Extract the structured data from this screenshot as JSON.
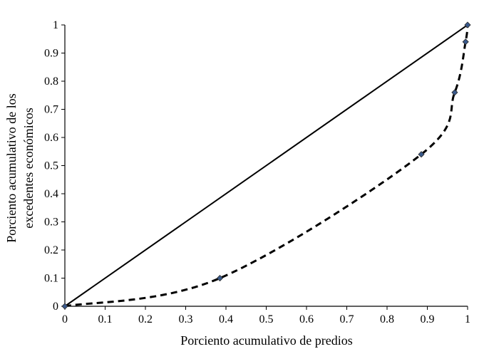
{
  "chart_data": {
    "type": "line",
    "title": "",
    "xlabel": "Porciento acumulativo de predios",
    "ylabel_lines": [
      "Porciento acumulativo de los",
      "excedentes  económicos"
    ],
    "xlim": [
      0,
      1
    ],
    "ylim": [
      0,
      1
    ],
    "x_ticks": [
      "0",
      "0.1",
      "0.2",
      "0.3",
      "0.4",
      "0.5",
      "0.6",
      "0.7",
      "0.8",
      "0.9",
      "1"
    ],
    "y_ticks": [
      "0",
      "0.1",
      "0.2",
      "0.3",
      "0.4",
      "0.5",
      "0.6",
      "0.7",
      "0.8",
      "0.9",
      "1"
    ],
    "grid": false,
    "legend": "none",
    "series": [
      {
        "style": "solid",
        "color": "#000000",
        "x": [
          0,
          1
        ],
        "y": [
          0,
          1
        ]
      },
      {
        "style": "dashed",
        "color": "#000000",
        "marker_color": "#3a5a8c",
        "marker": "diamond",
        "x": [
          0,
          0.385,
          0.885,
          0.968,
          0.995,
          1.0
        ],
        "y": [
          0,
          0.1,
          0.54,
          0.76,
          0.94,
          1.0
        ]
      }
    ]
  }
}
